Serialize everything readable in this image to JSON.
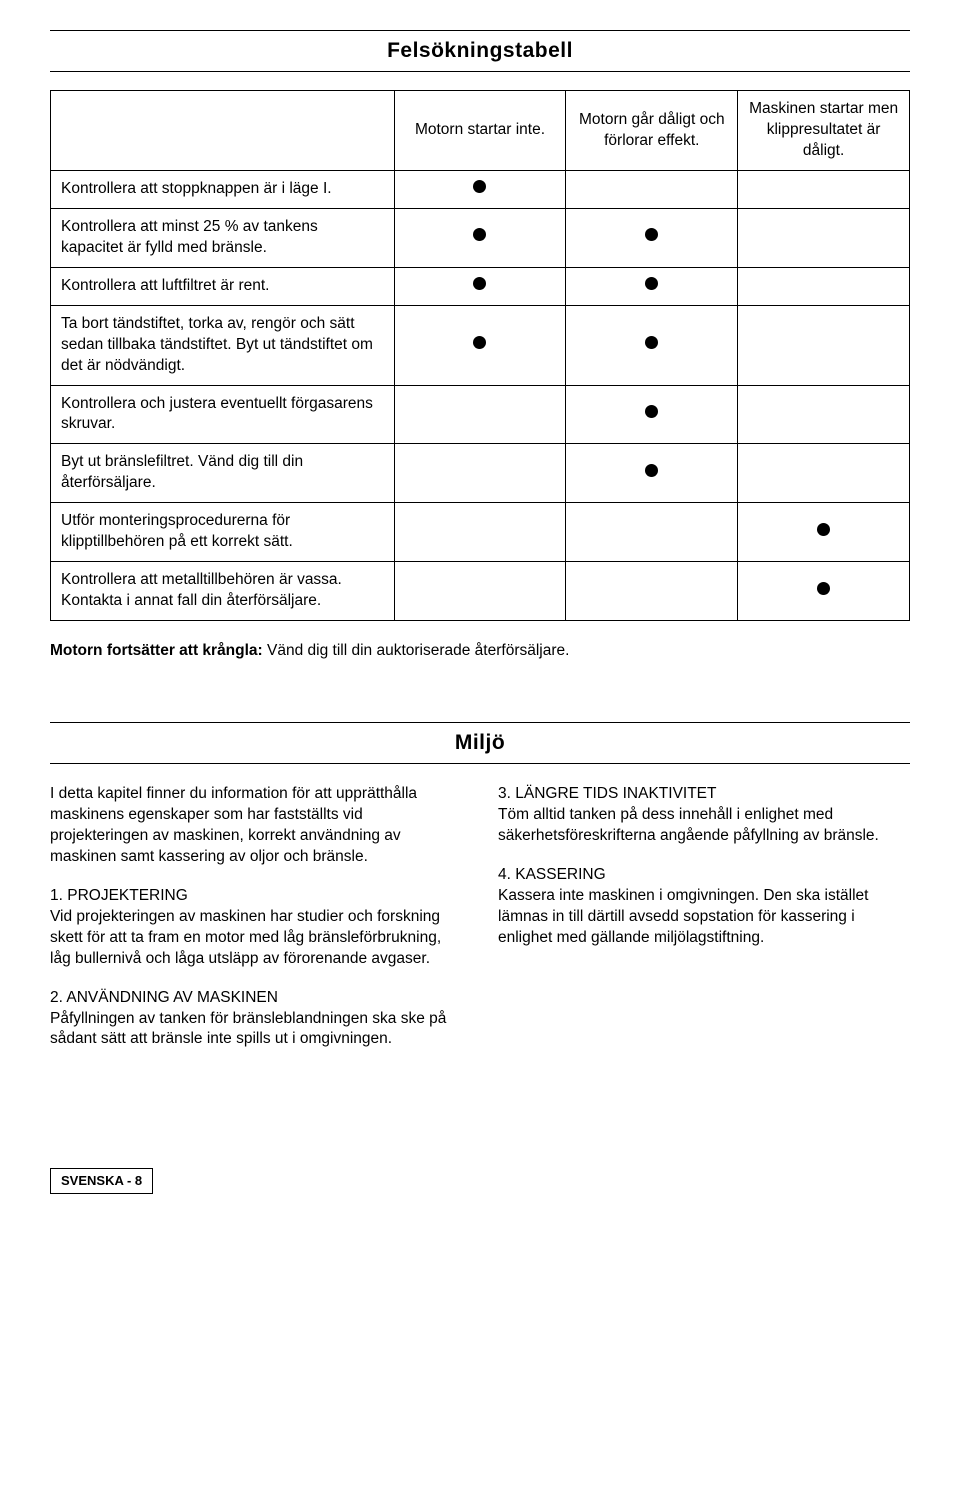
{
  "title1": "Felsökningstabell",
  "table": {
    "cols": [
      "Motorn startar inte.",
      "Motorn går dåligt och förlorar effekt.",
      "Maskinen startar men klippresultatet är dåligt."
    ],
    "rows": [
      {
        "label": "Kontrollera att stoppknappen är i läge I.",
        "dots": [
          true,
          false,
          false
        ]
      },
      {
        "label": "Kontrollera att minst 25 % av tankens kapacitet är fylld med bränsle.",
        "dots": [
          true,
          true,
          false
        ]
      },
      {
        "label": "Kontrollera att luftfiltret är rent.",
        "dots": [
          true,
          true,
          false
        ]
      },
      {
        "label": "Ta bort tändstiftet, torka av, rengör och sätt sedan tillbaka tändstiftet. Byt ut tändstiftet om det är nödvändigt.",
        "dots": [
          true,
          true,
          false
        ]
      },
      {
        "label": "Kontrollera och justera eventuellt förgasarens skruvar.",
        "dots": [
          false,
          true,
          false
        ]
      },
      {
        "label": "Byt ut bränslefiltret. Vänd dig till din återförsäljare.",
        "dots": [
          false,
          true,
          false
        ]
      },
      {
        "label": "Utför monteringsprocedurerna för klipptillbehören på ett korrekt sätt.",
        "dots": [
          false,
          false,
          true
        ]
      },
      {
        "label": "Kontrollera att metalltillbehören är vassa. Kontakta i annat fall din återförsäljare.",
        "dots": [
          false,
          false,
          true
        ]
      }
    ]
  },
  "note_bold": "Motorn fortsätter att krångla:",
  "note_rest": " Vänd dig till din auktoriserade återförsäljare.",
  "title2": "Miljö",
  "left": {
    "p1": "I detta kapitel finner du information för att upprätthålla maskinens egenskaper som har fastställts vid projekteringen av maskinen, korrekt användning av maskinen samt kassering av oljor och bränsle.",
    "h1": "1. PROJEKTERING",
    "p2": "Vid projekteringen av maskinen har studier och forskning skett för att ta fram en motor med låg bränsleförbrukning, låg bullernivå och låga utsläpp av förorenande avgaser.",
    "h2": "2. ANVÄNDNING AV MASKINEN",
    "p3": "Påfyllningen av tanken för bränsleblandningen ska ske på sådant sätt att bränsle inte spills ut i omgivningen."
  },
  "right": {
    "h1": "3. LÄNGRE TIDS INAKTIVITET",
    "p1": "Töm alltid tanken på dess innehåll i enlighet med säkerhetsföreskrifterna angående påfyllning av bränsle.",
    "h2": "4. KASSERING",
    "p2": "Kassera inte maskinen i omgivningen. Den ska istället lämnas in till därtill avsedd sopstation för kassering i enlighet med gällande miljölagstiftning."
  },
  "footer": "SVENSKA - 8"
}
